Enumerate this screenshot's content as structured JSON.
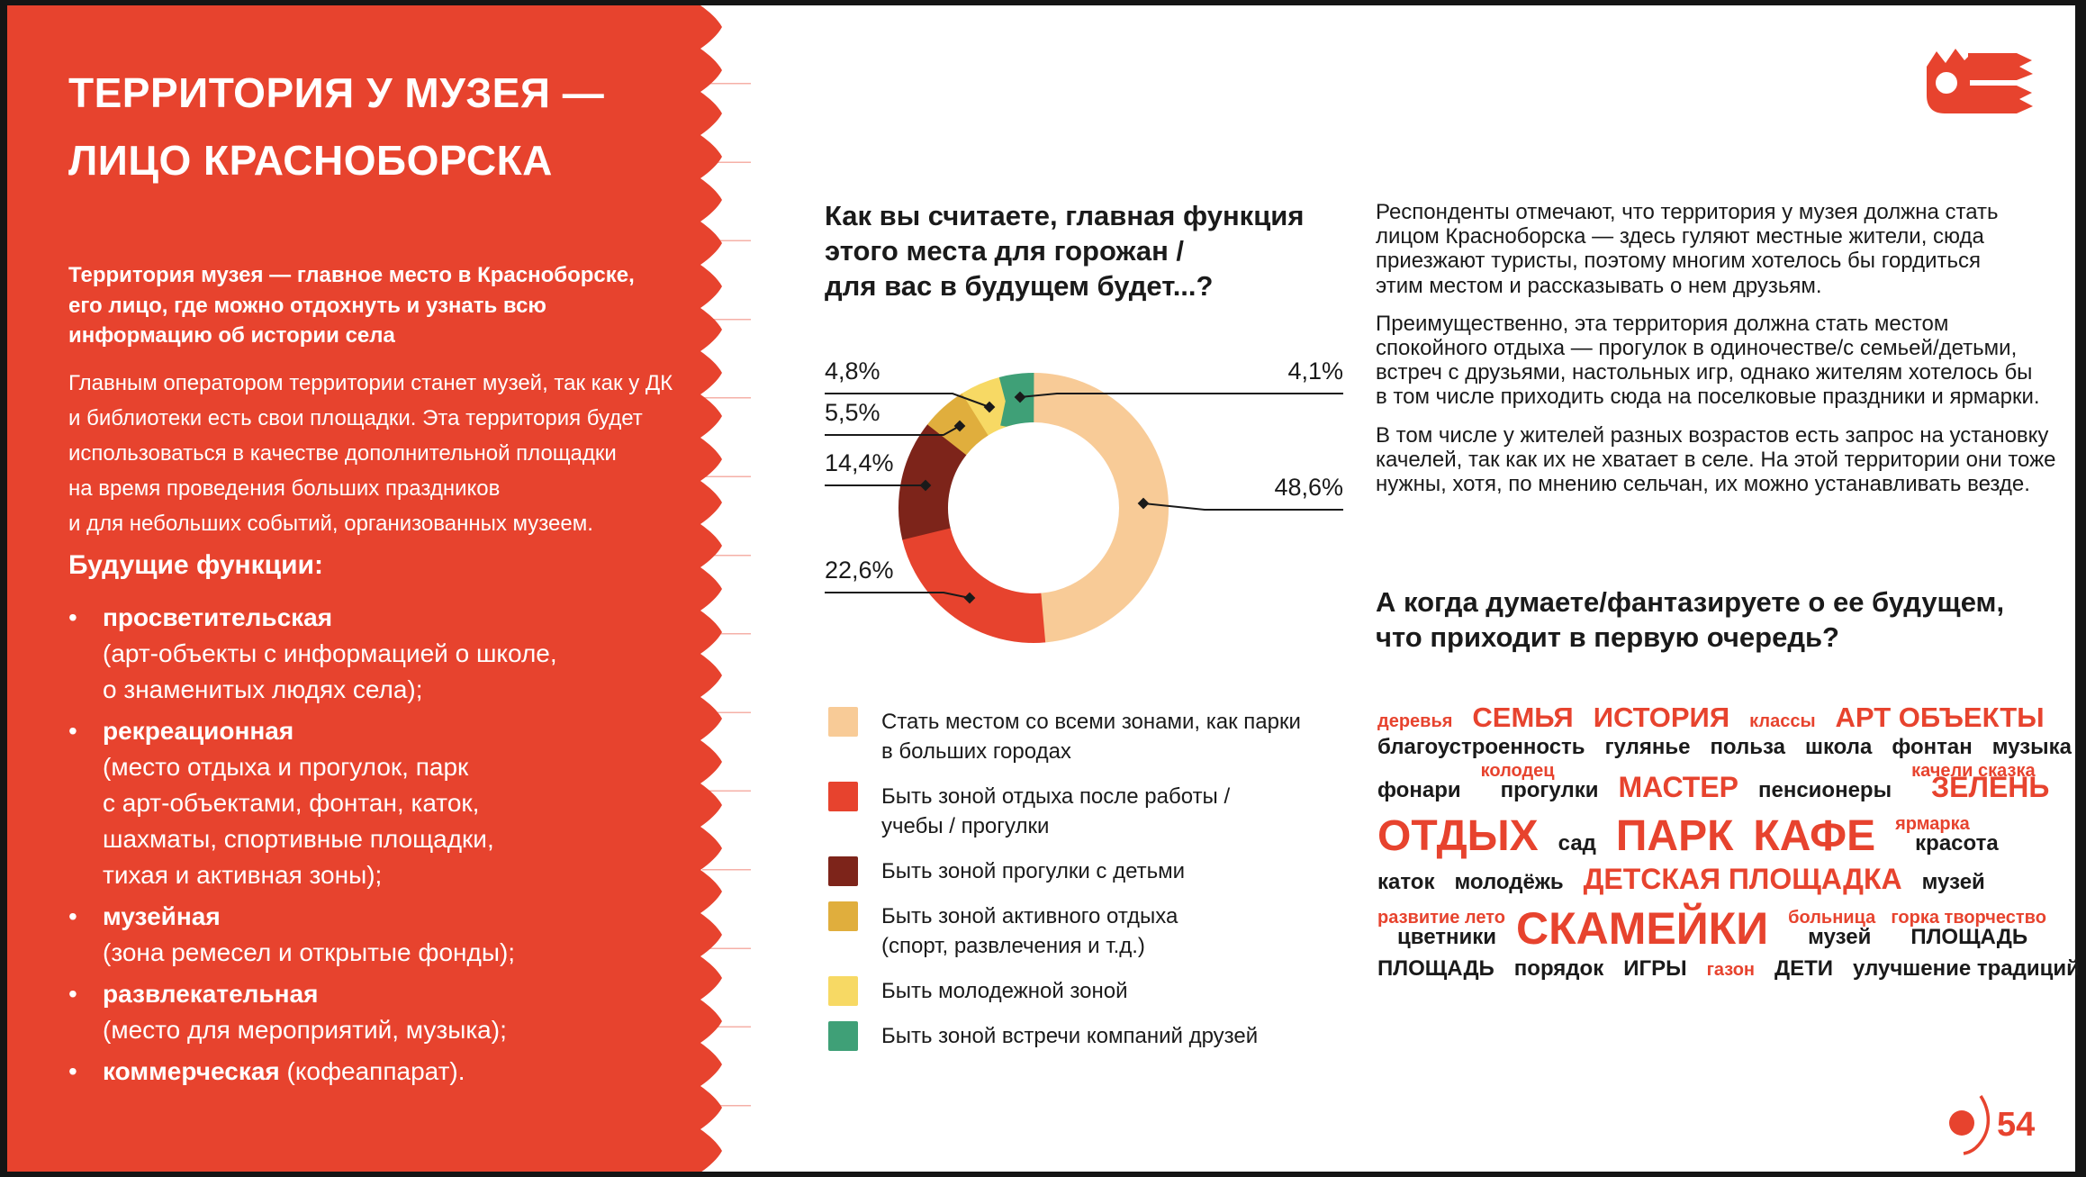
{
  "slide": {
    "page_number": "54",
    "colors": {
      "accent_red": "#E7432E",
      "text_black": "#1A1A1A",
      "panel_text": "#FFFFFF"
    }
  },
  "left_panel": {
    "title": "ТЕРРИТОРИЯ У МУЗЕЯ —\nЛИЦО КРАСНОБОРСКА",
    "intro": "Территория музея — главное место в Красноборске,\nего лицо, где можно отдохнуть и узнать всю\nинформацию об истории села",
    "body": "Главным оператором территории станет музей, так как у ДК\nи библиотеки есть свои площадки. Эта территория будет\nиспользоваться в качестве дополнительной площадки\nна время проведения больших праздников\nи для небольших событий, организованных музеем.",
    "list_title": "Будущие функции:",
    "bullets": [
      {
        "name": "просветительская",
        "desc": "(арт-объекты с информацией о школе,\nо знаменитых людях села);",
        "inline": false
      },
      {
        "name": "рекреационная",
        "desc": "(место отдыха и прогулок, парк\nс арт-объектами, фонтан, каток,\nшахматы, спортивные площадки,\nтихая и активная зоны);",
        "inline": false
      },
      {
        "name": "музейная",
        "desc": "(зона ремесел и открытые фонды);",
        "inline": false
      },
      {
        "name": "развлекательная",
        "desc": "(место для мероприятий, музыка);",
        "inline": false
      },
      {
        "name": "коммерческая",
        "desc": "(кофеаппарат).",
        "inline": true
      }
    ]
  },
  "survey_chart": {
    "question": "Как вы считаете, главная функция\nэтого места для горожан /\nдля вас в будущем будет...?"
  },
  "chart_data": {
    "type": "pie",
    "donut": true,
    "title": "Как вы считаете, главная функция этого места для горожан / для вас в будущем будет...?",
    "categories": [
      "Стать местом со всеми зонами, как парки\nв больших городах",
      "Быть зоной отдыха после работы /\nучебы / прогулки",
      "Быть зоной прогулки с детьми",
      "Быть зоной активного отдыха\n(спорт, развлечения и т.д.)",
      "Быть молодежной зоной",
      "Быть зоной встречи компаний друзей"
    ],
    "values": [
      48.6,
      22.6,
      14.4,
      5.5,
      4.8,
      4.1
    ],
    "labels": [
      "48,6%",
      "22,6%",
      "14,4%",
      "5,5%",
      "4,8%",
      "4,1%"
    ],
    "colors": [
      "#F8CB97",
      "#E7432E",
      "#7D241A",
      "#E0AE3D",
      "#F7D964",
      "#3FA077"
    ],
    "unit": "%",
    "legend_position": "bottom"
  },
  "right_column": {
    "paragraphs": [
      "Респонденты отмечают, что территория у музея должна стать\nлицом Красноборска — здесь гуляют местные жители, сюда\nприезжают туристы, поэтому многим хотелось бы гордиться\nэтим местом и рассказывать о нем друзьям.",
      "Преимущественно, эта территория должна стать местом\nспокойного отдыха — прогулок в одиночестве/с семьей/детьми,\nвстреч с друзьями, настольных игр, однако жителям хотелось бы\nв том числе приходить сюда на поселковые праздники и ярмарки.",
      "В том числе у жителей разных возрастов есть запрос на установку\nкачелей, так как их не хватает в селе. На этой территории они тоже\nнужны, хотя, по мнению сельчан, их можно устанавливать везде."
    ],
    "question": "А когда думаете/фантазируете о ее будущем,\nчто приходит в первую очередь?"
  },
  "word_cloud": {
    "lines": [
      [
        {
          "t": "деревья",
          "s": "xs"
        },
        {
          "t": "СЕМЬЯ",
          "s": "l1"
        },
        {
          "t": "ИСТОРИЯ",
          "s": "l1"
        },
        {
          "t": "классы",
          "s": "xs"
        },
        {
          "t": "АРТ ОБЪЕКТЫ",
          "s": "l1"
        }
      ],
      [
        {
          "t": "благоустроенность",
          "s": "md"
        },
        {
          "t": "гулянье",
          "s": "md"
        },
        {
          "t": "польза",
          "s": "md"
        },
        {
          "t": "школа",
          "s": "md"
        },
        {
          "t": "фонтан",
          "s": "md"
        },
        {
          "t": "музыка",
          "s": "md"
        }
      ],
      [
        {
          "t": "фонари",
          "s": "md"
        },
        {
          "t": "колодец",
          "s": "xs",
          "raise": true
        },
        {
          "t": "прогулки",
          "s": "md"
        },
        {
          "t": "МАСТЕР",
          "s": "l2"
        },
        {
          "t": "пенсионеры",
          "s": "md"
        },
        {
          "t": "качели сказка",
          "s": "xs",
          "raise": true
        },
        {
          "t": "ЗЕЛЕНЬ",
          "s": "l2"
        }
      ],
      [
        {
          "t": "ОТДЫХ",
          "s": "xl"
        },
        {
          "t": "сад",
          "s": "md"
        },
        {
          "t": "ПАРК",
          "s": "xl"
        },
        {
          "t": "КАФЕ",
          "s": "xl"
        },
        {
          "t": "ярмарка",
          "s": "xs",
          "raise": true
        },
        {
          "t": "красота",
          "s": "md"
        }
      ],
      [
        {
          "t": "каток",
          "s": "md"
        },
        {
          "t": "молодёжь",
          "s": "md"
        },
        {
          "t": "ДЕТСКАЯ ПЛОЩАДКА",
          "s": "l2"
        },
        {
          "t": "музей",
          "s": "md"
        }
      ],
      [
        {
          "t": "развитие лето",
          "s": "xs",
          "raise": true
        },
        {
          "t": "цветники",
          "s": "md"
        },
        {
          "t": "СКАМЕЙКИ",
          "s": "xxl"
        },
        {
          "t": "больница",
          "s": "xs",
          "raise": true
        },
        {
          "t": "музей",
          "s": "md"
        },
        {
          "t": "горка творчество",
          "s": "xs",
          "raise": true
        },
        {
          "t": "ПЛОЩАДЬ",
          "s": "md"
        }
      ],
      [
        {
          "t": "ПЛОЩАДЬ",
          "s": "md"
        },
        {
          "t": "порядок",
          "s": "md"
        },
        {
          "t": "ИГРЫ",
          "s": "md"
        },
        {
          "t": "газон",
          "s": "xs"
        },
        {
          "t": "ДЕТИ",
          "s": "md"
        },
        {
          "t": "улучшение традиций",
          "s": "md"
        }
      ]
    ]
  }
}
